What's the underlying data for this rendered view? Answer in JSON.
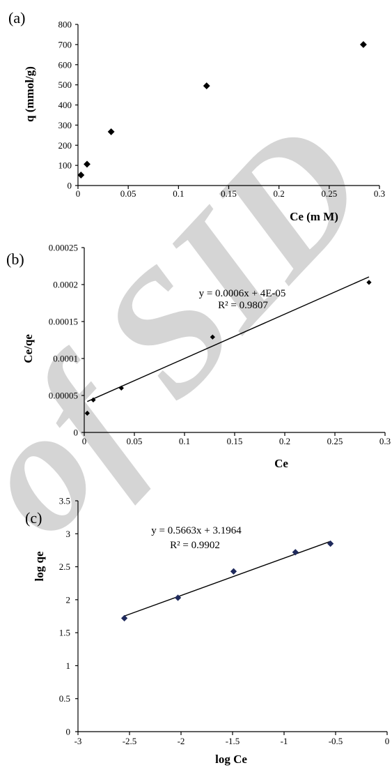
{
  "watermark": {
    "text": "of SID",
    "color": "#c8c8c8"
  },
  "chart_data": [
    {
      "panel": "(a)",
      "type": "scatter",
      "xlabel": "Ce (m M)",
      "ylabel": "q (mmol/g)",
      "xlim": [
        0,
        0.3
      ],
      "ylim": [
        0,
        800
      ],
      "x_ticks": [
        0,
        0.05,
        0.1,
        0.15,
        0.2,
        0.25,
        0.3
      ],
      "x_tick_labels": [
        "0",
        "0.05",
        "0.1",
        "0.15",
        "0.2",
        "0.25",
        "0.3"
      ],
      "y_ticks": [
        0,
        100,
        200,
        300,
        400,
        500,
        600,
        700,
        800
      ],
      "y_tick_labels": [
        "0",
        "100",
        "200",
        "300",
        "400",
        "500",
        "600",
        "700",
        "800"
      ],
      "grid": false,
      "marker": "diamond",
      "color": "#000000",
      "series": [
        {
          "x": [
            0.003,
            0.009,
            0.033,
            0.128,
            0.284
          ],
          "y": [
            52,
            106,
            267,
            495,
            700
          ]
        }
      ]
    },
    {
      "panel": "(b)",
      "type": "scatter",
      "xlabel": "Ce",
      "ylabel": "Ce/qe",
      "xlim": [
        0,
        0.3
      ],
      "ylim": [
        0,
        0.00025
      ],
      "x_ticks": [
        0,
        0.05,
        0.1,
        0.15,
        0.2,
        0.25,
        0.3
      ],
      "x_tick_labels": [
        "0",
        "0.05",
        "0.1",
        "0.15",
        "0.2",
        "0.25",
        "0.3"
      ],
      "y_ticks": [
        0,
        5e-05,
        0.0001,
        0.00015,
        0.0002,
        0.00025
      ],
      "y_tick_labels": [
        "0",
        "0.00005",
        "0.0001",
        "0.00015",
        "0.0002",
        "0.00025"
      ],
      "grid": false,
      "marker": "diamond-small",
      "color": "#000000",
      "series": [
        {
          "x": [
            0.003,
            0.009,
            0.037,
            0.128,
            0.284
          ],
          "y": [
            2.6e-05,
            4.4e-05,
            6e-05,
            0.000129,
            0.000203
          ]
        }
      ],
      "trendline": {
        "slope": 0.0006,
        "intercept": 4e-05,
        "x_range": [
          0.003,
          0.284
        ]
      },
      "equation": "y = 0.0006x + 4E-05",
      "r_squared": "R² = 0.9807"
    },
    {
      "panel": "(c)",
      "type": "scatter",
      "xlabel": "log Ce",
      "ylabel": "log qe",
      "xlim": [
        -3,
        0
      ],
      "ylim": [
        0,
        3.5
      ],
      "x_ticks": [
        -3,
        -2.5,
        -2,
        -1.5,
        -1,
        -0.5,
        0
      ],
      "x_tick_labels": [
        "-3",
        "-2.5",
        "-2",
        "-1.5",
        "-1",
        "-0.5",
        "0"
      ],
      "y_ticks": [
        0,
        0.5,
        1,
        1.5,
        2,
        2.5,
        3,
        3.5
      ],
      "y_tick_labels": [
        "0",
        "0.5",
        "1",
        "1.5",
        "2",
        "2.5",
        "3",
        "3.5"
      ],
      "grid": false,
      "marker": "diamond",
      "color": "#1f2a5c",
      "series": [
        {
          "x": [
            -2.55,
            -2.03,
            -1.49,
            -0.89,
            -0.55
          ],
          "y": [
            1.72,
            2.03,
            2.43,
            2.72,
            2.85
          ]
        }
      ],
      "trendline": {
        "slope": 0.5663,
        "intercept": 3.1964,
        "x_range": [
          -2.55,
          -0.55
        ]
      },
      "equation": "y = 0.5663x + 3.1964",
      "r_squared": "R² = 0.9902"
    }
  ]
}
